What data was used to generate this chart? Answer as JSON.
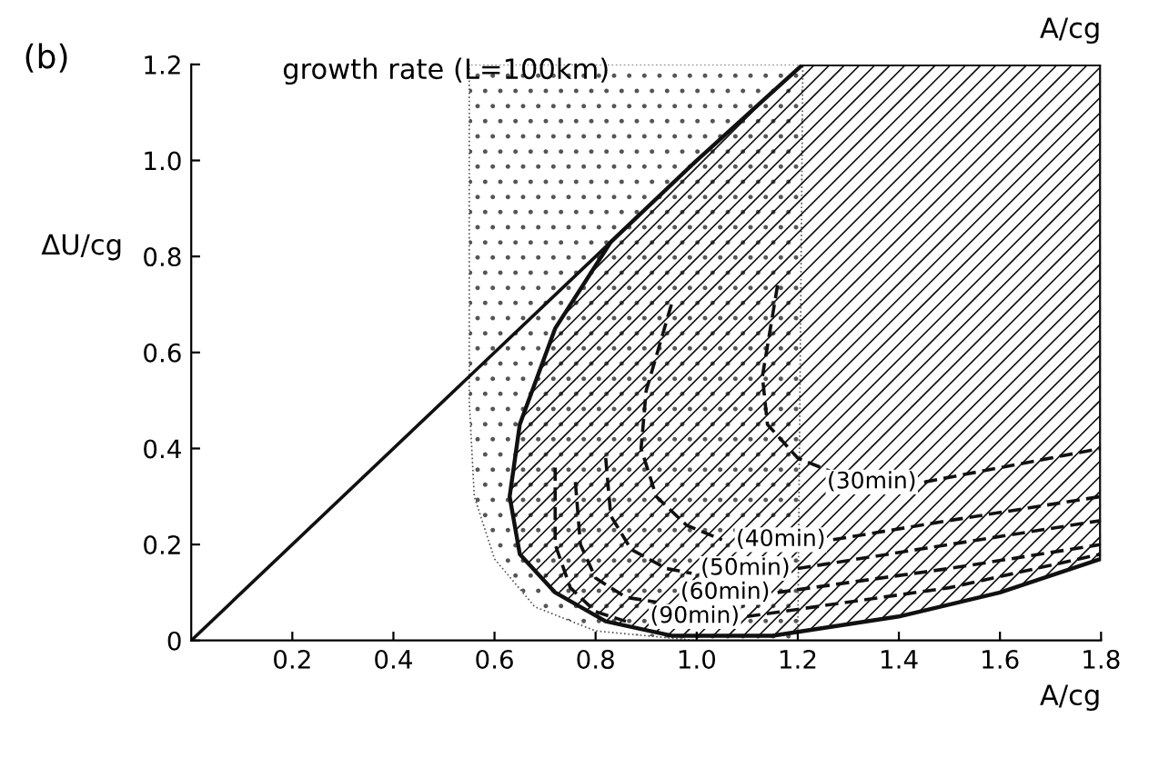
{
  "chart_data": {
    "type": "line",
    "title": "growth rate (L=100km)",
    "xlabel": "A/cg",
    "ylabel": "ΔU/cg",
    "annotations": [
      "(b)",
      "A/cg",
      {
        "text": "(30min)",
        "x": 1.45,
        "y": 0.33
      },
      {
        "text": "(40min)",
        "x": 1.27,
        "y": 0.21
      },
      {
        "text": "(50min)",
        "x": 1.2,
        "y": 0.15
      },
      {
        "text": "(60min)",
        "x": 1.16,
        "y": 0.1
      },
      {
        "text": "(90min)",
        "x": 1.1,
        "y": 0.05
      }
    ],
    "xlim": [
      0,
      1.8
    ],
    "ylim": [
      0,
      1.2
    ],
    "xticks": [
      0.2,
      0.4,
      0.6,
      0.8,
      {
        "value": 1.0,
        "label": "1.0"
      },
      1.2,
      1.4,
      1.6,
      1.8
    ],
    "yticks": [
      0,
      0.2,
      0.4,
      0.6,
      0.8,
      {
        "value": 1.0,
        "label": "1.0"
      },
      1.2
    ],
    "grid": false,
    "legend": false,
    "marker": "none",
    "series": [
      {
        "type": "area",
        "color": "#555555",
        "x": [
          0.55,
          0.55,
          0.56,
          0.6,
          0.68,
          0.8,
          1.0,
          1.2,
          1.21,
          0.55
        ],
        "values": [
          1.2,
          0.5,
          0.3,
          0.17,
          0.07,
          0.02,
          0.0,
          0.0,
          1.2,
          1.2
        ]
      },
      {
        "color": "#111111",
        "x": [
          0,
          0.83
        ],
        "values": [
          0,
          0.83
        ]
      },
      {
        "type": "area",
        "color": "#111111",
        "x": [
          1.21,
          1.0,
          0.83,
          0.72,
          0.65,
          0.63,
          0.65,
          0.72,
          0.82,
          0.95,
          1.15,
          1.4,
          1.6,
          1.8,
          1.8
        ],
        "values": [
          1.2,
          1.0,
          0.83,
          0.65,
          0.45,
          0.3,
          0.18,
          0.1,
          0.04,
          0.01,
          0.01,
          0.05,
          0.1,
          0.17,
          1.2
        ]
      },
      {
        "color": "#111111",
        "line_style": "dashed",
        "x": [
          1.16,
          1.13,
          1.14,
          1.2,
          1.27
        ],
        "values": [
          0.74,
          0.55,
          0.45,
          0.38,
          0.35
        ]
      },
      {
        "color": "#111111",
        "line_style": "dashed",
        "x": [
          1.45,
          1.6,
          1.8
        ],
        "values": [
          0.33,
          0.36,
          0.4
        ]
      },
      {
        "color": "#111111",
        "line_style": "dashed",
        "x": [
          0.95,
          0.9,
          0.89,
          0.92,
          0.98,
          1.05
        ],
        "values": [
          0.7,
          0.52,
          0.4,
          0.3,
          0.24,
          0.21
        ]
      },
      {
        "color": "#111111",
        "line_style": "dashed",
        "x": [
          1.27,
          1.5,
          1.8
        ],
        "values": [
          0.21,
          0.25,
          0.3
        ]
      },
      {
        "color": "#111111",
        "line_style": "dashed",
        "x": [
          0.82,
          0.83,
          0.87,
          0.94,
          0.99
        ],
        "values": [
          0.38,
          0.26,
          0.19,
          0.15,
          0.14
        ]
      },
      {
        "color": "#111111",
        "line_style": "dashed",
        "x": [
          1.2,
          1.5,
          1.8
        ],
        "values": [
          0.15,
          0.2,
          0.25
        ]
      },
      {
        "color": "#111111",
        "line_style": "dashed",
        "x": [
          0.76,
          0.77,
          0.8,
          0.86,
          0.92
        ],
        "values": [
          0.33,
          0.2,
          0.13,
          0.09,
          0.08
        ]
      },
      {
        "color": "#111111",
        "line_style": "dashed",
        "x": [
          1.16,
          1.5,
          1.8
        ],
        "values": [
          0.1,
          0.15,
          0.2
        ]
      },
      {
        "color": "#111111",
        "line_style": "dashed",
        "x": [
          0.72,
          0.72,
          0.75,
          0.8,
          0.86
        ],
        "values": [
          0.36,
          0.2,
          0.11,
          0.06,
          0.04
        ]
      },
      {
        "color": "#111111",
        "line_style": "dashed",
        "x": [
          1.1,
          1.5,
          1.8
        ],
        "values": [
          0.05,
          0.11,
          0.18
        ]
      }
    ]
  }
}
